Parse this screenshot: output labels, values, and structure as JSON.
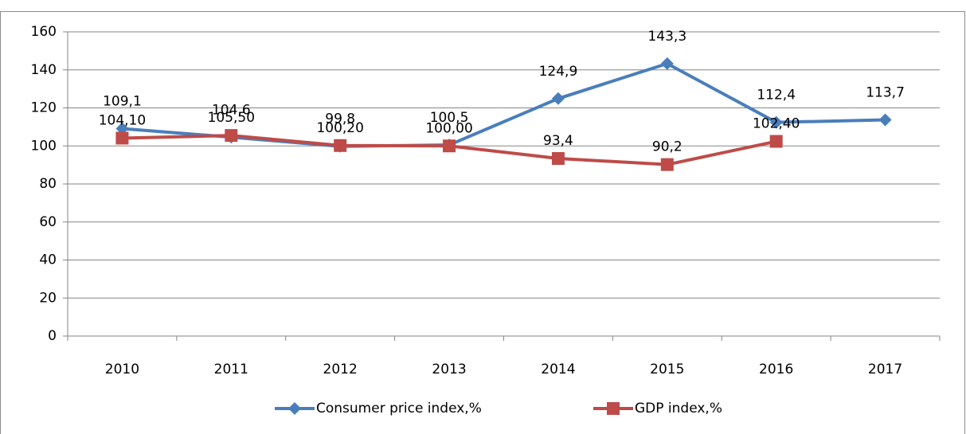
{
  "chart_data": {
    "type": "line",
    "categories": [
      "2010",
      "2011",
      "2012",
      "2013",
      "2014",
      "2015",
      "2016",
      "2017"
    ],
    "series": [
      {
        "name": "Consumer price index,%",
        "color": "#4a7ebb",
        "marker": "diamond",
        "values": [
          109.1,
          104.6,
          99.8,
          100.5,
          124.9,
          143.3,
          112.4,
          113.7
        ],
        "value_labels": [
          "109,1",
          "104,6",
          "99,8",
          "100,5",
          "124,9",
          "143,3",
          "112,4",
          "113,7"
        ]
      },
      {
        "name": "GDP index,%",
        "color": "#be4b48",
        "marker": "square",
        "values": [
          104.1,
          105.5,
          100.2,
          100.0,
          93.4,
          90.2,
          102.4,
          null
        ],
        "value_labels": [
          "104,10",
          "105,50",
          "100,20",
          "100,00",
          "93,4",
          "90,2",
          "102,40",
          null
        ]
      }
    ],
    "ylim": [
      0,
      160
    ],
    "yticks": [
      0,
      20,
      40,
      60,
      80,
      100,
      120,
      140,
      160
    ],
    "grid": true,
    "legend": "bottom"
  }
}
